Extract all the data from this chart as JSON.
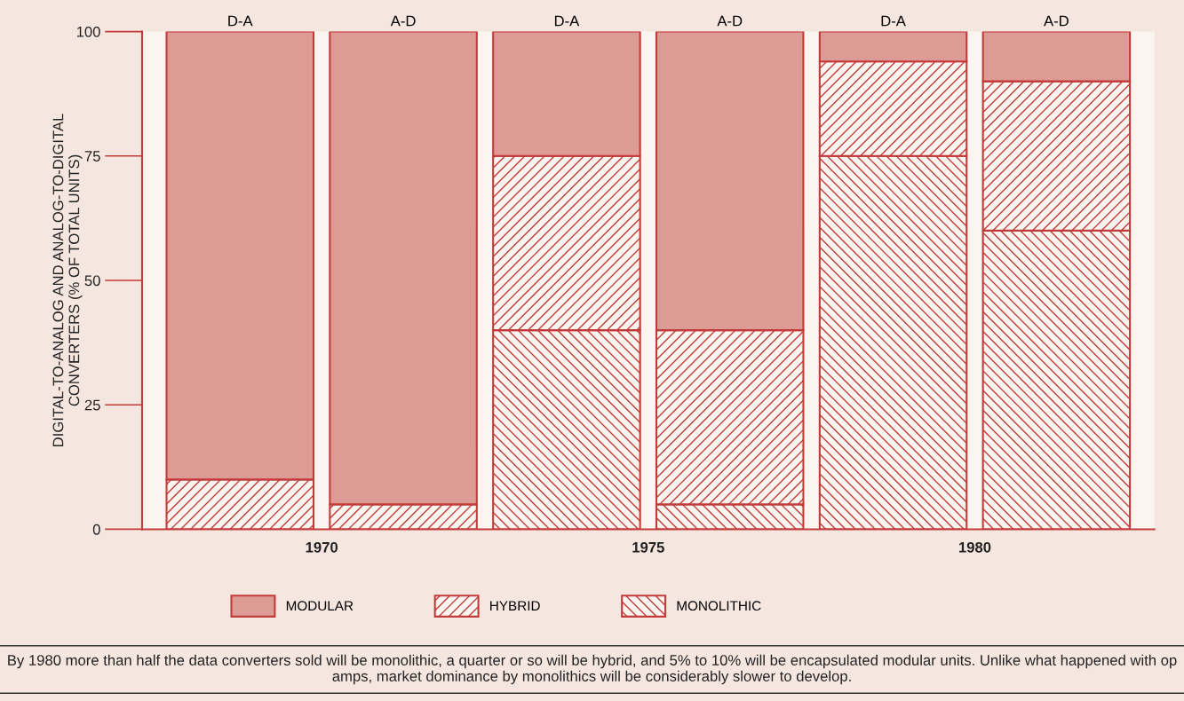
{
  "chart_data": {
    "type": "bar",
    "stacked": true,
    "ylabel": "DIGITAL-TO-ANALOG AND ANALOG-TO-DIGITAL\nCONVERTERS (% OF TOTAL UNITS)",
    "categories": [
      "D-A",
      "A-D",
      "D-A",
      "A-D",
      "D-A",
      "A-D"
    ],
    "series": [
      {
        "name": "MONOLITHIC",
        "color": "#c23a3a",
        "values": [
          0,
          0,
          40,
          5,
          75,
          60
        ]
      },
      {
        "name": "HYBRID",
        "color": "#c23a3a",
        "values": [
          10,
          5,
          35,
          35,
          19,
          30
        ]
      },
      {
        "name": "MODULAR",
        "color": "#dd9b95",
        "values": [
          90,
          95,
          25,
          60,
          6,
          10
        ]
      }
    ],
    "ylim": [
      0,
      100
    ],
    "yticks": [
      0,
      25,
      50,
      75,
      100
    ],
    "grid": false,
    "legend": "bottom",
    "annotations": [
      "1970",
      "1975",
      "1980",
      "By 1980 more than half the data converters sold will be monolithic, a quarter or so will be hybrid, and 5% to 10% will be encapsulated modular units. Unlike what happened with op amps, market dominance by monolithics will be considerably slower to develop."
    ]
  }
}
